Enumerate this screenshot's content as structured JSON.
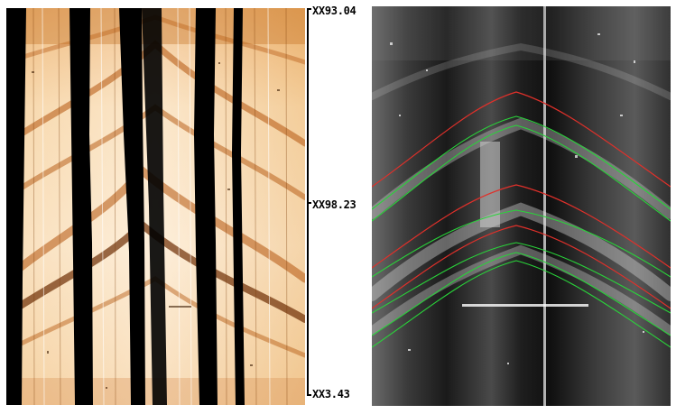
{
  "image_type": "borehole-image-log",
  "panels": {
    "left": {
      "name": "static-borehole-image",
      "colormap": [
        "#000000",
        "#7a3a05",
        "#d9771b",
        "#f5c38a",
        "#fff6e8"
      ]
    },
    "right": {
      "name": "dynamic-borehole-image-with-picks",
      "colormap": [
        "#000000",
        "#555555",
        "#aaaaaa",
        "#ffffff"
      ]
    }
  },
  "depth_axis": {
    "labels": [
      "XX93.04",
      "XX98.23",
      "XX3.43"
    ]
  },
  "picks": {
    "red_color": "#e0302a",
    "green_color": "#29d43a",
    "red_count": 4,
    "green_count": 6
  }
}
